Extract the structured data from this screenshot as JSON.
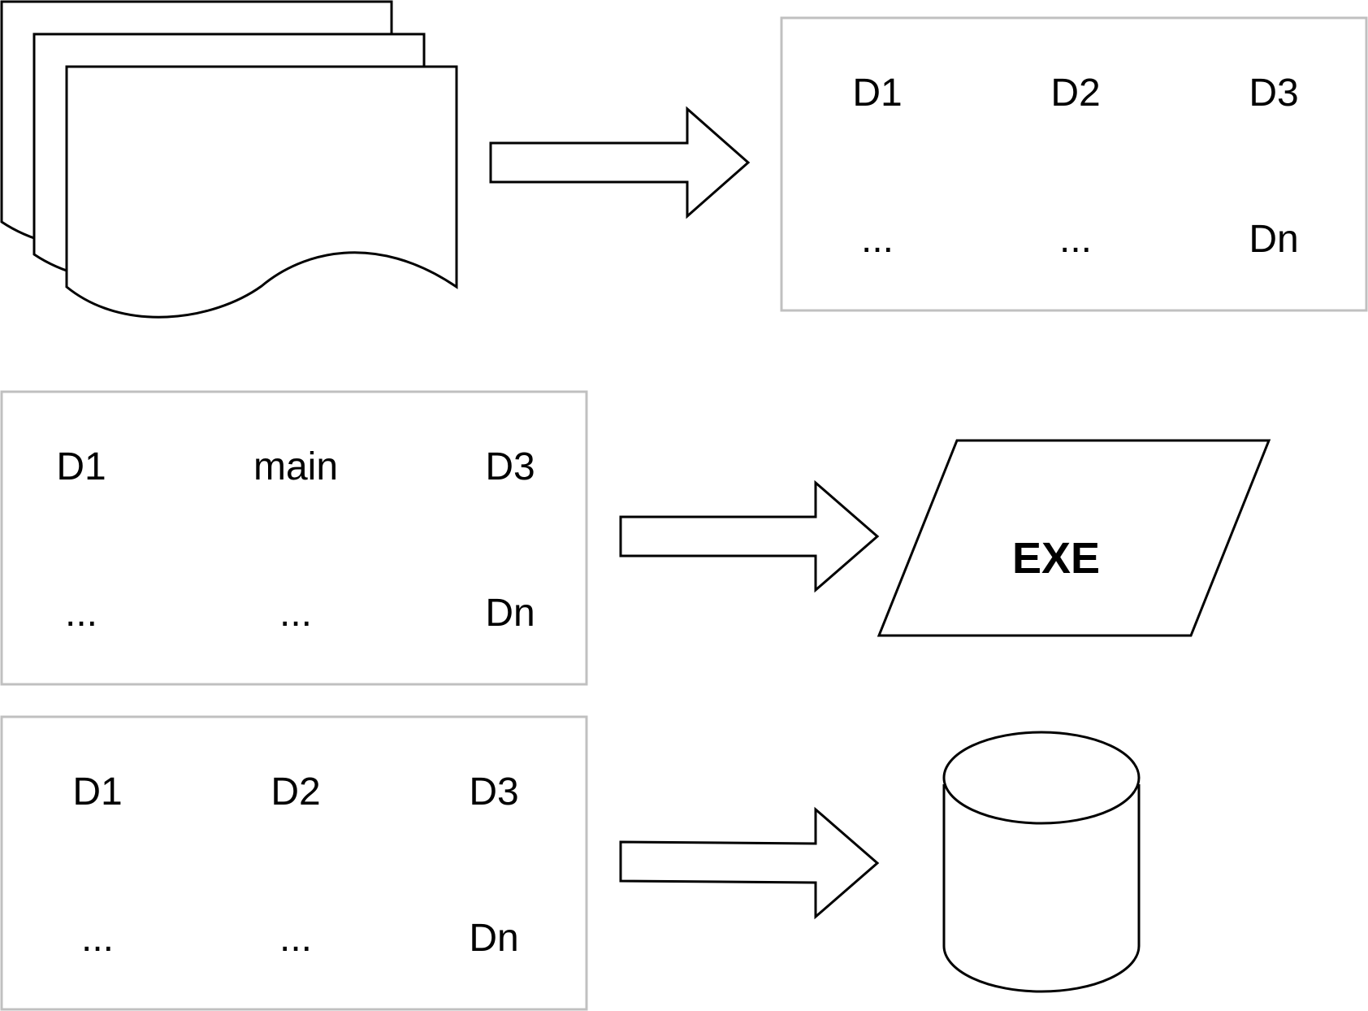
{
  "colors": {
    "stroke": "#000000",
    "panel_border": "#c0c0c0",
    "fill": "#ffffff"
  },
  "icons": {
    "documents": "multiple-documents-icon",
    "executable": "parallelogram-exe-icon",
    "storage": "database-cylinder-icon",
    "arrow": "block-arrow-right-icon"
  },
  "top_panel": {
    "cells": [
      "D1",
      "D2",
      "D3",
      "...",
      "...",
      "Dn"
    ]
  },
  "middle_panel": {
    "cells": [
      "D1",
      "main",
      "D3",
      "...",
      "...",
      "Dn"
    ]
  },
  "bottom_panel": {
    "cells": [
      "D1",
      "D2",
      "D3",
      "...",
      "...",
      "Dn"
    ]
  },
  "exe_label": "EXE"
}
